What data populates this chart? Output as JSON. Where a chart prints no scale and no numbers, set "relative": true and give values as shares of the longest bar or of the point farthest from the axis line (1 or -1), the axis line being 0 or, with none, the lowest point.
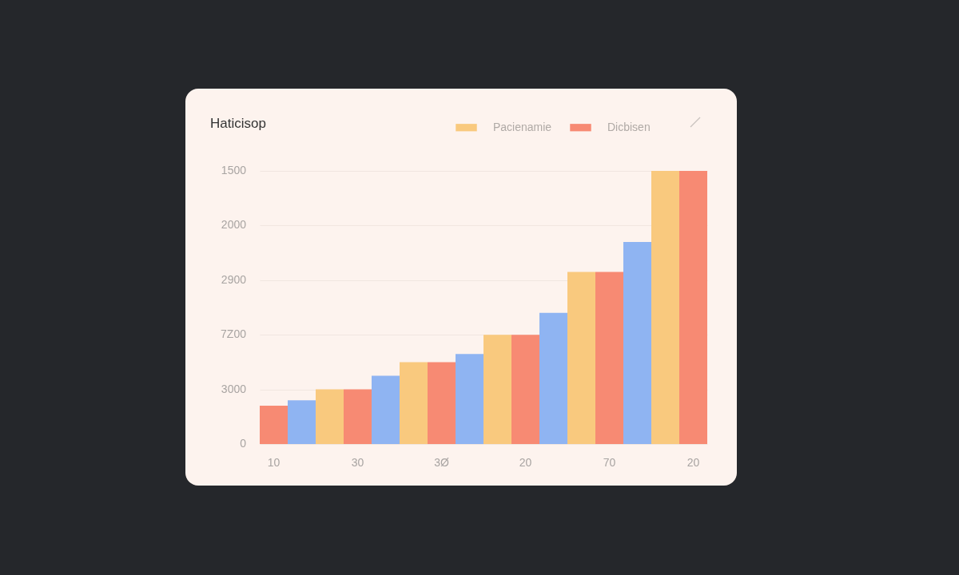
{
  "chart_data": {
    "type": "bar",
    "title": "Haticisop",
    "categories": [
      "10",
      null,
      null,
      "30",
      null,
      null,
      "3Ø",
      null,
      null,
      "20",
      null,
      null,
      "70",
      null,
      null,
      "20"
    ],
    "series": [
      {
        "name": "Pacienamie",
        "color": "#f9c97e",
        "values": [
          null,
          null,
          0.2,
          null,
          null,
          0.3,
          null,
          null,
          0.4,
          null,
          null,
          0.63,
          null,
          null,
          1,
          null
        ]
      },
      {
        "name": "Dicbisen",
        "color": "#f78a73",
        "values": [
          0.14,
          null,
          null,
          0.2,
          null,
          null,
          0.3,
          null,
          null,
          0.4,
          null,
          null,
          0.63,
          null,
          null,
          1
        ]
      },
      {
        "color": "#8fb4f2",
        "values": [
          null,
          0.16,
          null,
          null,
          0.25,
          null,
          null,
          0.33,
          null,
          null,
          0.48,
          null,
          null,
          0.74,
          null,
          null
        ]
      }
    ],
    "relative": true,
    "annotations": [
      "1500",
      "2000",
      "2900",
      "7Z00",
      "3000",
      "0"
    ],
    "grid": "y",
    "legend": "top right"
  }
}
